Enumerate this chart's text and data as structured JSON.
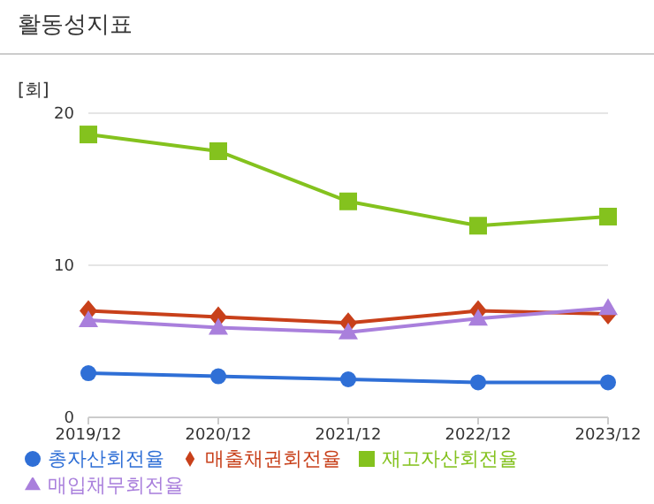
{
  "chart_data": {
    "type": "line",
    "title": "활동성지표",
    "ylabel": "[회]",
    "categories": [
      "2019/12",
      "2020/12",
      "2021/12",
      "2022/12",
      "2023/12"
    ],
    "series": [
      {
        "name": "총자산회전율",
        "color": "#2f6fd6",
        "marker": "circle",
        "values": [
          2.9,
          2.7,
          2.5,
          2.3,
          2.3
        ]
      },
      {
        "name": "매출채권회전율",
        "color": "#c8401a",
        "marker": "diamond",
        "values": [
          7.0,
          6.6,
          6.2,
          7.0,
          6.8
        ]
      },
      {
        "name": "재고자산회전율",
        "color": "#84c21e",
        "marker": "square",
        "values": [
          18.6,
          17.5,
          14.2,
          12.6,
          13.2
        ]
      },
      {
        "name": "매입채무회전율",
        "color": "#a97fdc",
        "marker": "triangle",
        "values": [
          6.4,
          5.9,
          5.6,
          6.5,
          7.2
        ]
      }
    ],
    "ylim": [
      0,
      20
    ],
    "yticks": [
      0,
      10,
      20
    ],
    "grid": "y",
    "legend": "bottom"
  }
}
